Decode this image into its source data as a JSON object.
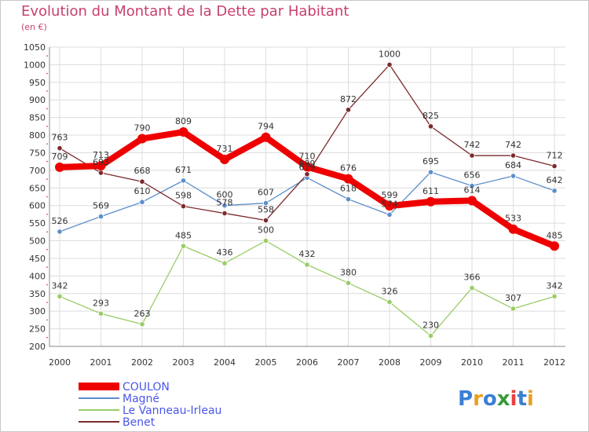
{
  "title": "Evolution du Montant de la Dette par Habitant",
  "subtitle": "(en €)",
  "logo": "Proxiti",
  "chart_data": {
    "type": "line",
    "title": "Evolution du Montant de la Dette par Habitant",
    "subtitle": "(en €)",
    "x": [
      "2000",
      "2001",
      "2002",
      "2003",
      "2004",
      "2005",
      "2006",
      "2007",
      "2008",
      "2009",
      "2010",
      "2011",
      "2012"
    ],
    "ylim": [
      200,
      1050
    ],
    "yticks": [
      200,
      250,
      300,
      350,
      400,
      450,
      500,
      550,
      600,
      650,
      700,
      750,
      800,
      850,
      900,
      950,
      1000,
      1050
    ],
    "grid": true,
    "legend_position": "bottom-left",
    "series": [
      {
        "name": "COULON",
        "color": "#ee0000",
        "values": [
          709,
          713,
          790,
          809,
          731,
          794,
          710,
          676,
          599,
          611,
          614,
          533,
          485
        ]
      },
      {
        "name": "Magné",
        "color": "#5b8ecb",
        "values": [
          526,
          569,
          610,
          671,
          600,
          607,
          679,
          618,
          574,
          695,
          656,
          684,
          642
        ]
      },
      {
        "name": "Le Vanneau-Irleau",
        "color": "#99cc66",
        "values": [
          342,
          293,
          263,
          485,
          436,
          500,
          432,
          380,
          326,
          230,
          366,
          307,
          342
        ]
      },
      {
        "name": "Benet",
        "color": "#7b2a2a",
        "values": [
          763,
          693,
          668,
          598,
          578,
          558,
          689,
          872,
          1000,
          825,
          742,
          742,
          712
        ]
      }
    ]
  }
}
